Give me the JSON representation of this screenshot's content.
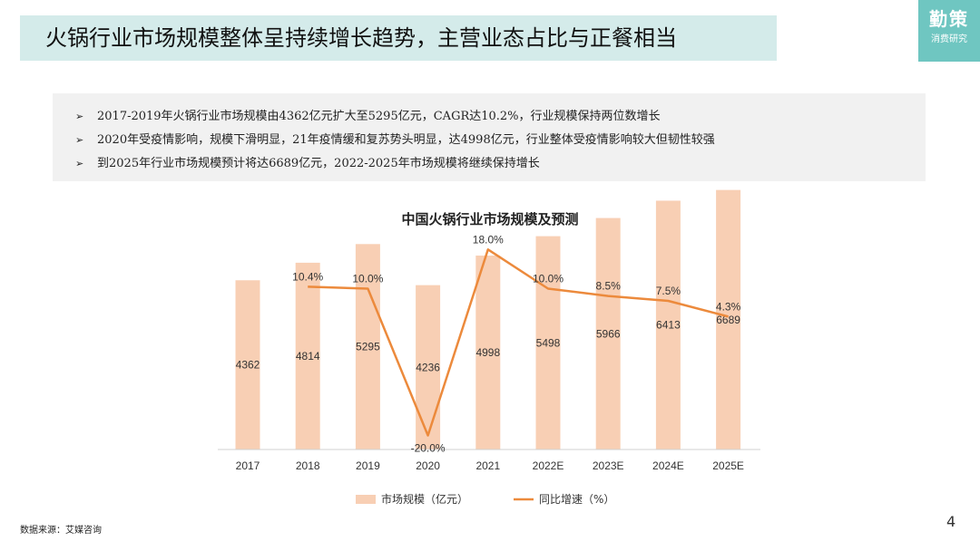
{
  "header": {
    "title": "火锅行业市场规模整体呈持续增长趋势，主营业态占比与正餐相当"
  },
  "logo": {
    "main": "勤策",
    "sub": "消费研究"
  },
  "bullets": [
    "2017-2019年火锅行业市场规模由4362亿元扩大至5295亿元，CAGR达10.2%，行业规模保持两位数增长",
    "2020年受疫情影响，规模下滑明显，21年疫情缓和复苏势头明显，达4998亿元，行业整体受疫情影响较大但韧性较强",
    "到2025年行业市场规模预计将达6689亿元，2022-2025年市场规模将继续保持增长"
  ],
  "chart_data": {
    "type": "bar",
    "title": "中国火锅行业市场规模及预测",
    "categories": [
      "2017",
      "2018",
      "2019",
      "2020",
      "2021",
      "2022E",
      "2023E",
      "2024E",
      "2025E"
    ],
    "series": [
      {
        "name": "市场规模（亿元）",
        "type": "bar",
        "axis": "left",
        "values": [
          4362,
          4814,
          5295,
          4236,
          4998,
          5498,
          5966,
          6413,
          6689
        ],
        "labels": [
          "4362",
          "4814",
          "5295",
          "4236",
          "4998",
          "5498",
          "5966",
          "6413",
          "6689"
        ]
      },
      {
        "name": "同比增速（%）",
        "type": "line",
        "axis": "right",
        "values": [
          null,
          10.4,
          10.0,
          -20.0,
          18.0,
          10.0,
          8.5,
          7.5,
          4.3
        ],
        "labels": [
          "",
          "10.4%",
          "10.0%",
          "-20.0%",
          "18.0%",
          "10.0%",
          "8.5%",
          "7.5%",
          "4.3%"
        ]
      }
    ],
    "ylim_left": [
      0,
      8000
    ],
    "ylim_right": [
      -20,
      20
    ],
    "grid": false,
    "legend": "bottom",
    "colors": {
      "bar": "#f8cfb4",
      "line": "#ec8a3c"
    }
  },
  "footer": {
    "source": "数据来源：艾媒咨询",
    "page": "4"
  }
}
